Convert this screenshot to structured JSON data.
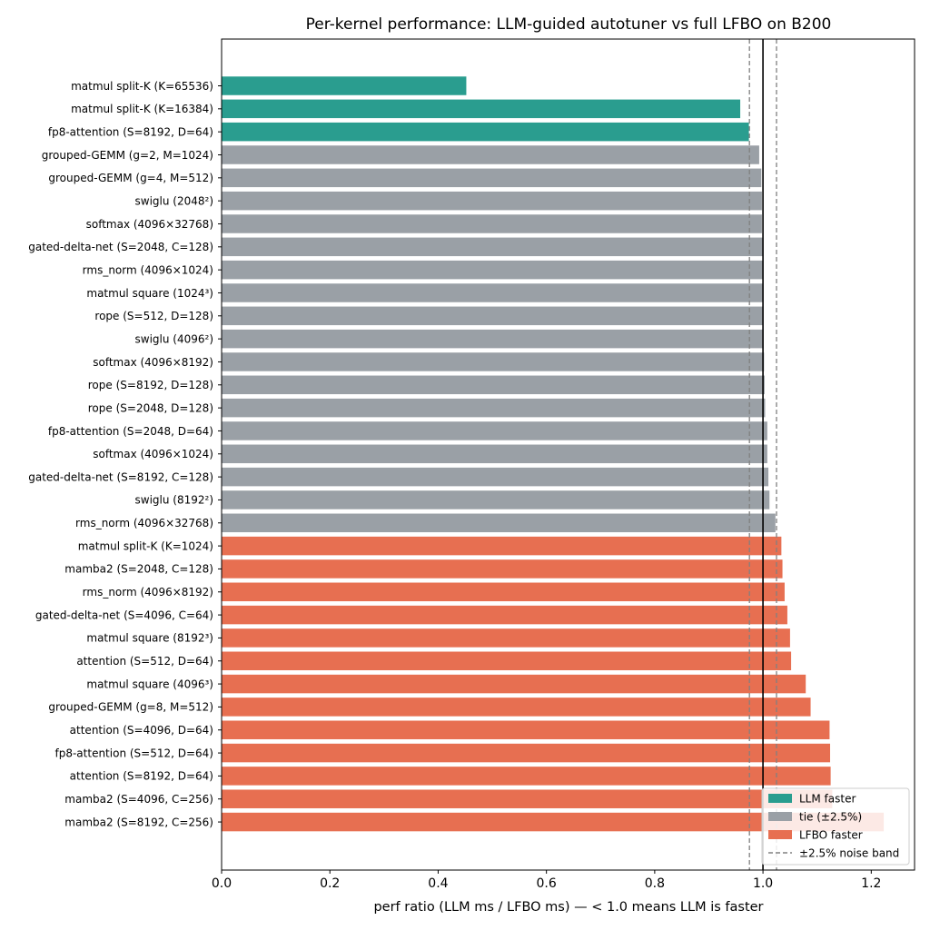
{
  "chart_data": {
    "type": "bar",
    "orientation": "horizontal",
    "title": "Per-kernel performance: LLM-guided autotuner vs full LFBO on B200",
    "xlabel": "perf ratio  (LLM ms / LFBO ms)   —   < 1.0 means LLM is faster",
    "ylabel": "",
    "xlim": [
      0.0,
      1.28
    ],
    "xticks": [
      "0.0",
      "0.2",
      "0.4",
      "0.6",
      "0.8",
      "1.0",
      "1.2"
    ],
    "reference_line": 1.0,
    "noise_band": [
      0.975,
      1.025
    ],
    "grid": false,
    "legend_position": "lower-right",
    "colors": {
      "llm_faster": "#2a9d8f",
      "tie": "#9aa0a6",
      "lfbo_faster": "#e76f51",
      "reference": "#000000",
      "band": "#808080"
    },
    "legend": [
      {
        "key": "llm_faster",
        "label": "LLM faster",
        "kind": "patch"
      },
      {
        "key": "tie",
        "label": "tie (±2.5%)",
        "kind": "patch"
      },
      {
        "key": "lfbo_faster",
        "label": "LFBO faster",
        "kind": "patch"
      },
      {
        "key": "band",
        "label": "±2.5% noise band",
        "kind": "dashed"
      }
    ],
    "bars": [
      {
        "label": "matmul split-K (K=65536)",
        "value": 0.452,
        "group": "llm_faster"
      },
      {
        "label": "matmul split-K (K=16384)",
        "value": 0.958,
        "group": "llm_faster"
      },
      {
        "label": "fp8-attention (S=8192, D=64)",
        "value": 0.974,
        "group": "llm_faster"
      },
      {
        "label": "grouped-GEMM (g=2, M=1024)",
        "value": 0.993,
        "group": "tie"
      },
      {
        "label": "grouped-GEMM (g=4, M=512)",
        "value": 0.997,
        "group": "tie"
      },
      {
        "label": "swiglu (2048²)",
        "value": 0.998,
        "group": "tie"
      },
      {
        "label": "softmax (4096×32768)",
        "value": 0.998,
        "group": "tie"
      },
      {
        "label": "gated-delta-net (S=2048, C=128)",
        "value": 0.999,
        "group": "tie"
      },
      {
        "label": "rms_norm (4096×1024)",
        "value": 0.999,
        "group": "tie"
      },
      {
        "label": "matmul square (1024³)",
        "value": 1.0,
        "group": "tie"
      },
      {
        "label": "rope (S=512, D=128)",
        "value": 1.0,
        "group": "tie"
      },
      {
        "label": "swiglu (4096²)",
        "value": 1.001,
        "group": "tie"
      },
      {
        "label": "softmax (4096×8192)",
        "value": 1.002,
        "group": "tie"
      },
      {
        "label": "rope (S=8192, D=128)",
        "value": 1.003,
        "group": "tie"
      },
      {
        "label": "rope (S=2048, D=128)",
        "value": 1.004,
        "group": "tie"
      },
      {
        "label": "fp8-attention (S=2048, D=64)",
        "value": 1.008,
        "group": "tie"
      },
      {
        "label": "softmax (4096×1024)",
        "value": 1.008,
        "group": "tie"
      },
      {
        "label": "gated-delta-net (S=8192, C=128)",
        "value": 1.01,
        "group": "tie"
      },
      {
        "label": "swiglu (8192²)",
        "value": 1.012,
        "group": "tie"
      },
      {
        "label": "rms_norm (4096×32768)",
        "value": 1.023,
        "group": "tie"
      },
      {
        "label": "matmul split-K (K=1024)",
        "value": 1.034,
        "group": "lfbo_faster"
      },
      {
        "label": "mamba2 (S=2048, C=128)",
        "value": 1.036,
        "group": "lfbo_faster"
      },
      {
        "label": "rms_norm (4096×8192)",
        "value": 1.04,
        "group": "lfbo_faster"
      },
      {
        "label": "gated-delta-net (S=4096, C=64)",
        "value": 1.045,
        "group": "lfbo_faster"
      },
      {
        "label": "matmul square (8192³)",
        "value": 1.05,
        "group": "lfbo_faster"
      },
      {
        "label": "attention (S=512, D=64)",
        "value": 1.052,
        "group": "lfbo_faster"
      },
      {
        "label": "matmul square (4096³)",
        "value": 1.079,
        "group": "lfbo_faster"
      },
      {
        "label": "grouped-GEMM (g=8, M=512)",
        "value": 1.088,
        "group": "lfbo_faster"
      },
      {
        "label": "attention (S=4096, D=64)",
        "value": 1.123,
        "group": "lfbo_faster"
      },
      {
        "label": "fp8-attention (S=512, D=64)",
        "value": 1.124,
        "group": "lfbo_faster"
      },
      {
        "label": "attention (S=8192, D=64)",
        "value": 1.125,
        "group": "lfbo_faster"
      },
      {
        "label": "mamba2 (S=4096, C=256)",
        "value": 1.128,
        "group": "lfbo_faster"
      },
      {
        "label": "mamba2 (S=8192, C=256)",
        "value": 1.223,
        "group": "lfbo_faster"
      }
    ]
  }
}
